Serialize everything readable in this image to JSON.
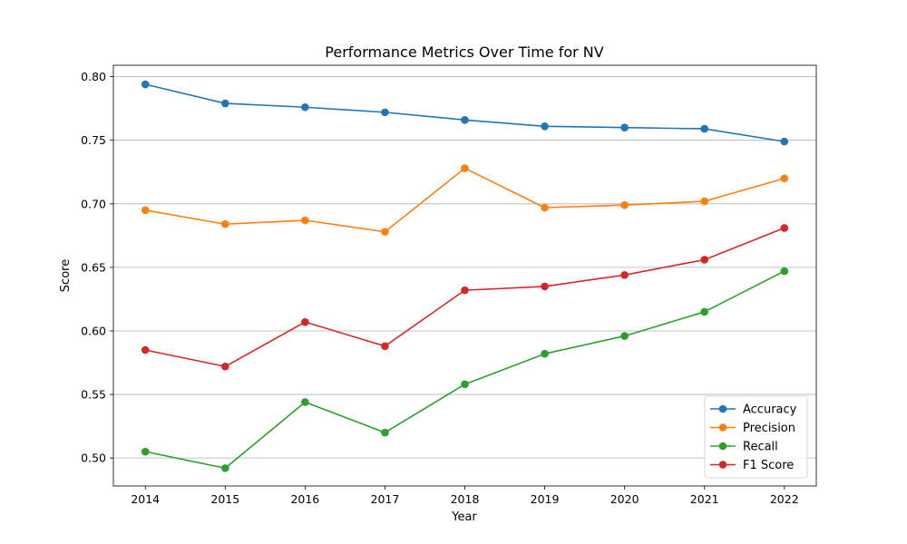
{
  "chart_data": {
    "type": "line",
    "title": "Performance Metrics Over Time for NV",
    "xlabel": "Year",
    "ylabel": "Score",
    "x": [
      2014,
      2015,
      2016,
      2017,
      2018,
      2019,
      2020,
      2021,
      2022
    ],
    "xtick_labels": [
      "2014",
      "2015",
      "2016",
      "2017",
      "2018",
      "2019",
      "2020",
      "2021",
      "2022"
    ],
    "ylim": [
      0.478,
      0.809
    ],
    "yticks": [
      0.5,
      0.55,
      0.6,
      0.65,
      0.7,
      0.75,
      0.8
    ],
    "ytick_labels": [
      "0.50",
      "0.55",
      "0.60",
      "0.65",
      "0.70",
      "0.75",
      "0.80"
    ],
    "grid": "horizontal",
    "legend_position": "lower-right",
    "series": [
      {
        "name": "Accuracy",
        "color": "#1f77b4",
        "values": [
          0.794,
          0.779,
          0.776,
          0.772,
          0.766,
          0.761,
          0.76,
          0.759,
          0.749
        ]
      },
      {
        "name": "Precision",
        "color": "#ff7f0e",
        "values": [
          0.695,
          0.684,
          0.687,
          0.678,
          0.728,
          0.697,
          0.699,
          0.702,
          0.72
        ]
      },
      {
        "name": "Recall",
        "color": "#2ca02c",
        "values": [
          0.505,
          0.492,
          0.544,
          0.52,
          0.558,
          0.582,
          0.596,
          0.615,
          0.647
        ]
      },
      {
        "name": "F1 Score",
        "color": "#d62728",
        "values": [
          0.585,
          0.572,
          0.607,
          0.588,
          0.632,
          0.635,
          0.644,
          0.656,
          0.681
        ]
      }
    ]
  }
}
